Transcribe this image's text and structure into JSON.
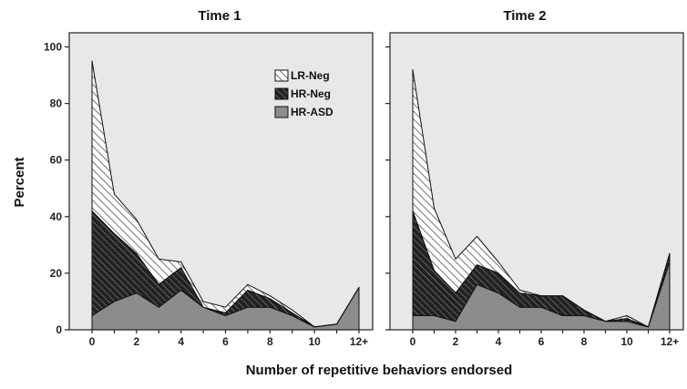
{
  "chart_data": {
    "type": "area",
    "stacked": true,
    "ylabel": "Percent",
    "xlabel": "Number of repetitive behaviors endorsed",
    "ylim": [
      0,
      105
    ],
    "yticks": [
      0,
      20,
      40,
      60,
      80,
      100
    ],
    "x_tick_labels": [
      "0",
      "2",
      "4",
      "6",
      "8",
      "10",
      "12+"
    ],
    "x_tick_positions": [
      0,
      2,
      4,
      6,
      8,
      10,
      12
    ],
    "x": [
      0,
      1,
      2,
      3,
      4,
      5,
      6,
      7,
      8,
      9,
      10,
      11,
      12
    ],
    "grid": false,
    "legend_position": "top-right (first panel)",
    "legend": [
      "LR-Neg",
      "HR-Neg",
      "HR-ASD"
    ],
    "colors": {
      "HR-ASD": "#8c8c8c",
      "HR-Neg": "#2a2a2a",
      "LR-Neg": "#ffffff",
      "background": "#e8e8e8"
    },
    "panels": [
      {
        "title": "Time 1",
        "series": [
          {
            "name": "HR-ASD",
            "values": [
              5,
              10,
              13,
              8,
              14,
              8,
              5,
              8,
              8,
              5,
              1,
              2,
              15
            ]
          },
          {
            "name": "HR-Neg",
            "values": [
              37,
              24,
              14,
              8,
              8,
              0,
              1,
              6,
              3,
              1,
              0,
              0,
              0
            ]
          },
          {
            "name": "LR-Neg",
            "values": [
              53,
              14,
              12,
              9,
              2,
              2,
              2,
              2,
              1,
              1,
              0,
              0,
              0
            ]
          }
        ]
      },
      {
        "title": "Time 2",
        "series": [
          {
            "name": "HR-ASD",
            "values": [
              5,
              5,
              3,
              16,
              13,
              8,
              8,
              5,
              5,
              3,
              3,
              1,
              24
            ]
          },
          {
            "name": "HR-Neg",
            "values": [
              37,
              16,
              10,
              7,
              7,
              5,
              4,
              7,
              2,
              0,
              1,
              0,
              3
            ]
          },
          {
            "name": "LR-Neg",
            "values": [
              50,
              22,
              12,
              10,
              4,
              1,
              0,
              0,
              0,
              0,
              1,
              0,
              0
            ]
          }
        ]
      }
    ]
  }
}
